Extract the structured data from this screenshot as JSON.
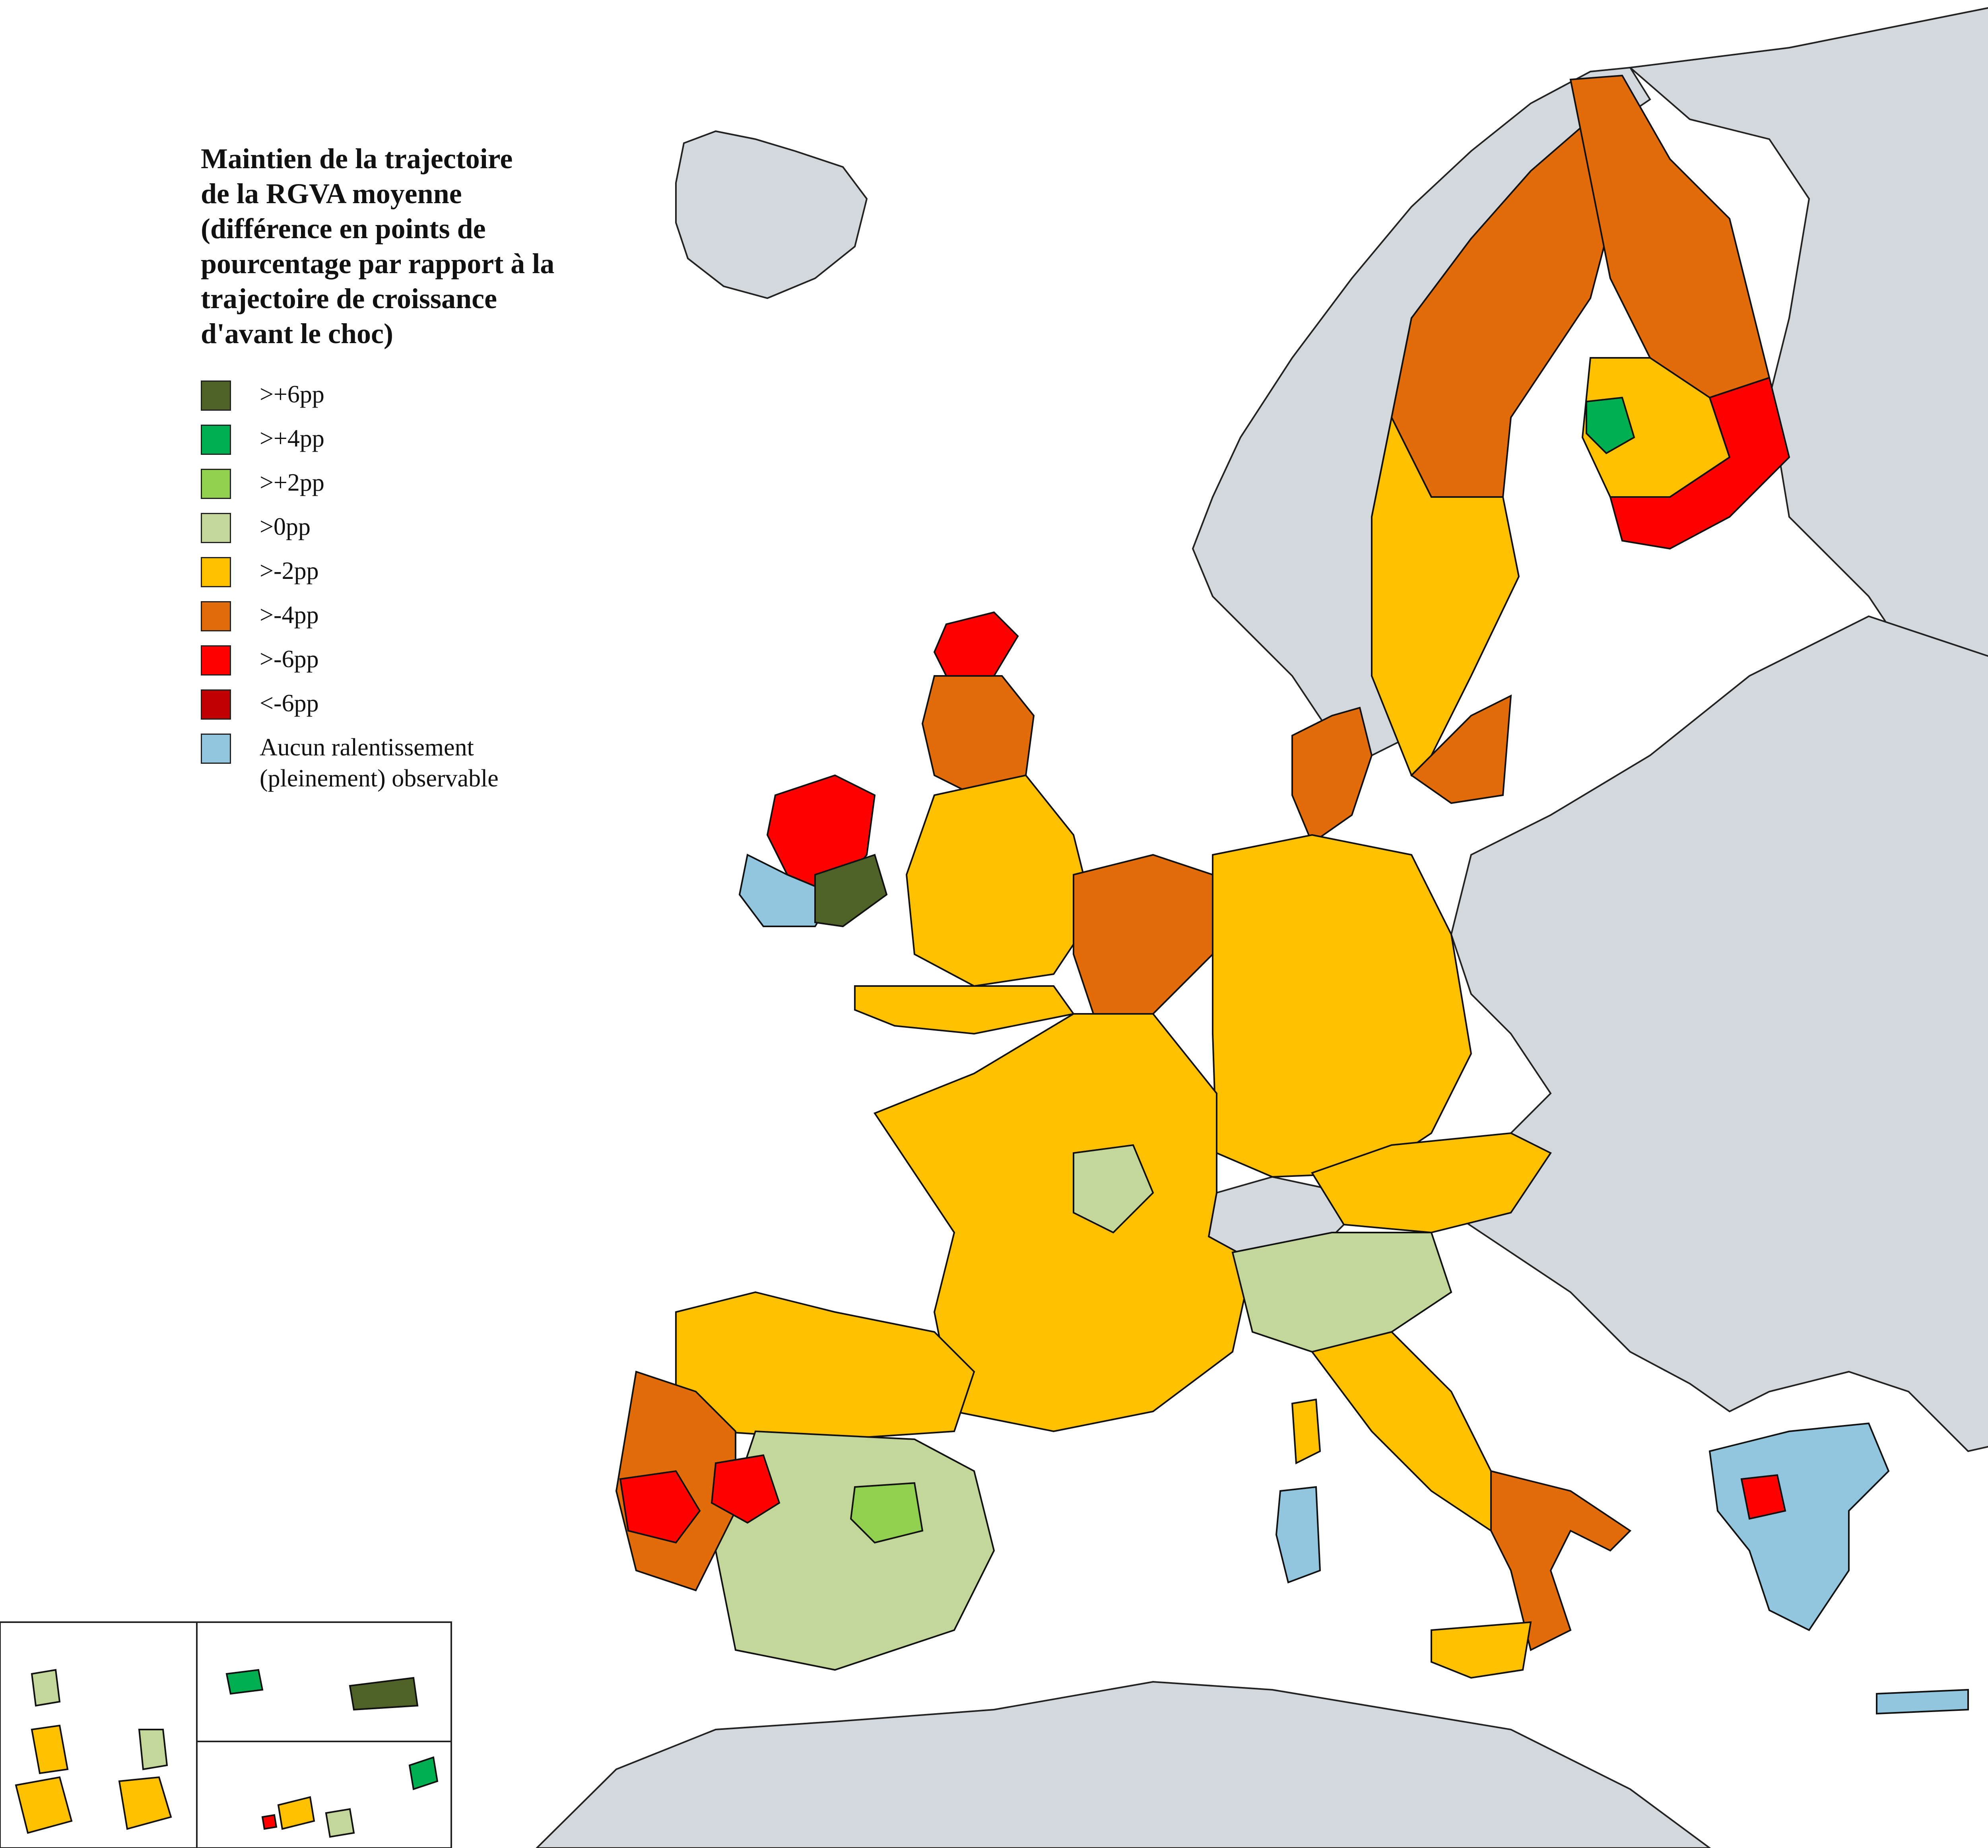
{
  "legend": {
    "title": "Maintien de la trajectoire\nde la RGVA moyenne\n(différence en points de\npourcentage par rapport à la\ntrajectoire de croissance\nd'avant le choc)",
    "items": [
      {
        "label": ">+6pp",
        "color": "#4f6228"
      },
      {
        "label": ">+4pp",
        "color": "#00b050"
      },
      {
        "label": ">+2pp",
        "color": "#92d050"
      },
      {
        "label": ">0pp",
        "color": "#c4d79b"
      },
      {
        "label": ">-2pp",
        "color": "#ffc000"
      },
      {
        "label": ">-4pp",
        "color": "#e26b0a"
      },
      {
        "label": ">-6pp",
        "color": "#ff0000"
      },
      {
        "label": "<-6pp",
        "color": "#c00000"
      },
      {
        "label": "Aucun ralentissement\n(pleinement) observable",
        "color": "#92c5de"
      }
    ]
  },
  "colors": {
    "sea": "#ffffff",
    "non_eu_land": "#d3d8dc",
    "border": "#111111"
  }
}
